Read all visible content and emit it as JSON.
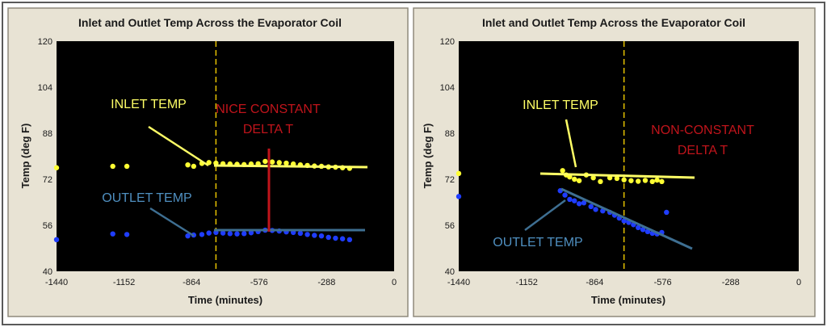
{
  "chart_data": [
    {
      "type": "scatter",
      "title": "Inlet and Outlet Temp Across the Evaporator Coil",
      "xlabel": "Time (minutes)",
      "ylabel": "Temp (deg F)",
      "xlim": [
        -1440,
        0
      ],
      "ylim": [
        40,
        120
      ],
      "x_ticks": [
        -1440,
        -1152,
        -864,
        -576,
        -288,
        0
      ],
      "y_ticks": [
        40,
        56,
        72,
        88,
        104,
        120
      ],
      "grid": false,
      "marker_time": -760,
      "series": [
        {
          "name": "INLET TEMP",
          "color": "#ffff33",
          "x": [
            -1440,
            -1200,
            -1140,
            -880,
            -855,
            -820,
            -790,
            -760,
            -730,
            -700,
            -670,
            -640,
            -610,
            -580,
            -550,
            -520,
            -490,
            -460,
            -430,
            -400,
            -370,
            -340,
            -310,
            -280,
            -250,
            -220,
            -190
          ],
          "y": [
            76,
            76.5,
            76.5,
            77,
            76.5,
            77.5,
            77.8,
            77.6,
            77.4,
            77.3,
            77.2,
            77.1,
            77.3,
            77.4,
            78.2,
            78,
            77.8,
            77.6,
            77.3,
            77,
            76.8,
            76.6,
            76.5,
            76.3,
            76.2,
            76,
            75.8
          ]
        },
        {
          "name": "OUTLET TEMP",
          "color": "#1f3dff",
          "x": [
            -1440,
            -1200,
            -1140,
            -880,
            -855,
            -820,
            -790,
            -760,
            -730,
            -700,
            -670,
            -640,
            -610,
            -580,
            -550,
            -520,
            -490,
            -460,
            -430,
            -400,
            -370,
            -340,
            -310,
            -280,
            -250,
            -220,
            -190
          ],
          "y": [
            51,
            53,
            52.8,
            52.3,
            52.6,
            52.8,
            53.3,
            53.5,
            53.3,
            53.1,
            53,
            53.1,
            53.4,
            53.8,
            54.3,
            54.2,
            54,
            53.7,
            53.5,
            53.2,
            52.8,
            52.5,
            52.3,
            51.8,
            51.5,
            51.3,
            51
          ]
        }
      ],
      "annotations": {
        "inlet_label": "INLET TEMP",
        "outlet_label": "OUTLET TEMP",
        "delta_line1": "NICE CONSTANT",
        "delta_line2": "DELTA T"
      }
    },
    {
      "type": "scatter",
      "title": "Inlet and Outlet Temp Across the Evaporator Coil",
      "xlabel": "Time (minutes)",
      "ylabel": "Temp (deg F)",
      "xlim": [
        -1440,
        0
      ],
      "ylim": [
        40,
        120
      ],
      "x_ticks": [
        -1440,
        -1152,
        -864,
        -576,
        -288,
        0
      ],
      "y_ticks": [
        40,
        56,
        72,
        88,
        104,
        120
      ],
      "grid": false,
      "marker_time": -740,
      "series": [
        {
          "name": "INLET TEMP",
          "color": "#ffff33",
          "x": [
            -1440,
            -1000,
            -985,
            -970,
            -950,
            -930,
            -900,
            -870,
            -840,
            -800,
            -770,
            -740,
            -710,
            -680,
            -650,
            -620,
            -600,
            -580
          ],
          "y": [
            74,
            75,
            73.5,
            72.8,
            72,
            71.5,
            73.5,
            72.5,
            71.2,
            72.5,
            72.3,
            71.8,
            71.5,
            71.3,
            71.6,
            71.2,
            71.7,
            71.2
          ]
        },
        {
          "name": "OUTLET TEMP",
          "color": "#1f3dff",
          "x": [
            -1440,
            -1010,
            -990,
            -970,
            -950,
            -930,
            -910,
            -880,
            -860,
            -830,
            -800,
            -780,
            -760,
            -740,
            -720,
            -700,
            -680,
            -660,
            -640,
            -620,
            -600,
            -580,
            -560
          ],
          "y": [
            66,
            68,
            66.5,
            65,
            64.5,
            63.5,
            63.8,
            62.5,
            61.5,
            61,
            60.5,
            59.5,
            58.5,
            57.5,
            57,
            56.2,
            55.2,
            54.5,
            53.8,
            53.2,
            53,
            53.5,
            60.5
          ]
        }
      ],
      "annotations": {
        "inlet_label": "INLET TEMP",
        "outlet_label": "OUTLET TEMP",
        "delta_line1": "NON-CONSTANT",
        "delta_line2": "DELTA T"
      }
    }
  ]
}
